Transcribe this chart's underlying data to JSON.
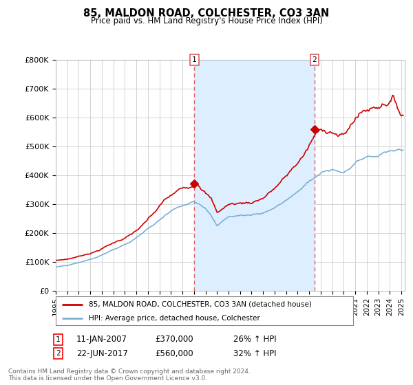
{
  "title": "85, MALDON ROAD, COLCHESTER, CO3 3AN",
  "subtitle": "Price paid vs. HM Land Registry's House Price Index (HPI)",
  "legend_label_red": "85, MALDON ROAD, COLCHESTER, CO3 3AN (detached house)",
  "legend_label_blue": "HPI: Average price, detached house, Colchester",
  "sale1_date": "11-JAN-2007",
  "sale1_price": "£370,000",
  "sale1_hpi": "26% ↑ HPI",
  "sale2_date": "22-JUN-2017",
  "sale2_price": "£560,000",
  "sale2_hpi": "32% ↑ HPI",
  "footer": "Contains HM Land Registry data © Crown copyright and database right 2024.\nThis data is licensed under the Open Government Licence v3.0.",
  "ylim": [
    0,
    800000
  ],
  "yticks": [
    0,
    100000,
    200000,
    300000,
    400000,
    500000,
    600000,
    700000,
    800000
  ],
  "ytick_labels": [
    "£0",
    "£100K",
    "£200K",
    "£300K",
    "£400K",
    "£500K",
    "£600K",
    "£700K",
    "£800K"
  ],
  "red_color": "#cc0000",
  "blue_color": "#7ab0d4",
  "vline_color": "#e06060",
  "shade_color": "#ddeeff",
  "sale1_year": 2007.04,
  "sale2_year": 2017.47,
  "sale1_price_val": 370000,
  "sale2_price_val": 560000,
  "xmin": 1995.0,
  "xmax": 2025.3
}
